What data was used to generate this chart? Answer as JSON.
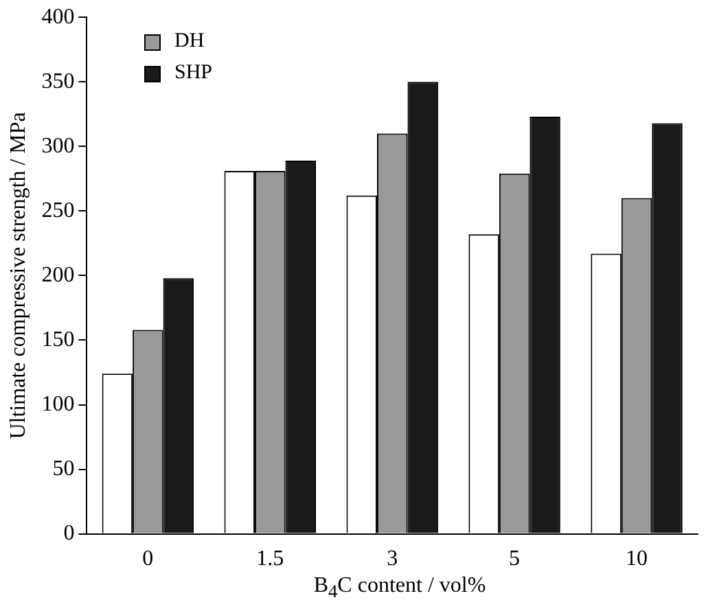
{
  "chart_data": {
    "type": "bar",
    "xlabel": "B$_{4}$C content / vol%",
    "ylabel": "Ultimate compressive strength / MPa",
    "categories": [
      "0",
      "1.5",
      "3",
      "5",
      "10"
    ],
    "series": [
      {
        "color": "#ffffff",
        "values": [
          124,
          281,
          262,
          232,
          217
        ]
      },
      {
        "name": "DH",
        "color": "#999999",
        "values": [
          158,
          281,
          310,
          279,
          260
        ]
      },
      {
        "name": "SHP",
        "color": "#1a1a1a",
        "values": [
          198,
          289,
          350,
          323,
          318
        ]
      }
    ],
    "ylim": [
      0,
      400
    ],
    "yticks": [
      0,
      50,
      100,
      150,
      200,
      250,
      300,
      350,
      400
    ],
    "grid": false,
    "legend": "top left"
  }
}
